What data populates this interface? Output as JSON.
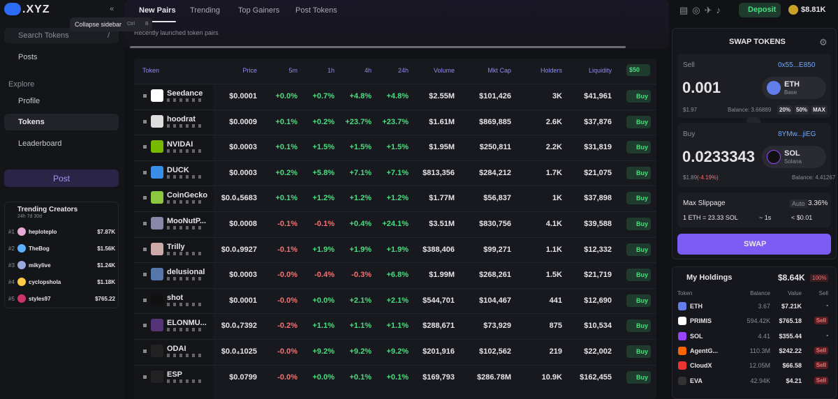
{
  "sidebar": {
    "logo": ".XYZ",
    "search": "Search Tokens",
    "search_key": "/",
    "nav": [
      "Posts",
      "Explore",
      "Profile",
      "Tokens",
      "Leaderboard"
    ],
    "post_button": "Post",
    "trending": {
      "title": "Trending Creators",
      "filters": "24h 7d 30d",
      "items": [
        {
          "rank": "#1",
          "name": "heploteplo",
          "value": "$7.87K"
        },
        {
          "rank": "#2",
          "name": "TheBog",
          "value": "$1.56K"
        },
        {
          "rank": "#3",
          "name": "mikylive",
          "value": "$1.24K"
        },
        {
          "rank": "#4",
          "name": "cyclopshola",
          "value": "$1.18K"
        },
        {
          "rank": "#5",
          "name": "styles97",
          "value": "$765.22"
        }
      ]
    }
  },
  "tooltip": {
    "text": "Collapse sidebar",
    "key1": "Ctrl",
    "key2": "B"
  },
  "tabs": [
    "New Pairs",
    "Trending",
    "Top Gainers",
    "Post Tokens"
  ],
  "subtitle": "Recently launched token pairs",
  "topbar": {
    "deposit": "Deposit",
    "balance": "$8.81K"
  },
  "table": {
    "headers": [
      "Token",
      "Price",
      "5m",
      "1h",
      "4h",
      "24h",
      "Volume",
      "Mkt Cap",
      "Holders",
      "Liquidity"
    ],
    "amount": "$50",
    "buy_label": "Buy",
    "rows": [
      {
        "name": "Seedance",
        "price": "$0.0001",
        "m5": "+0.0%",
        "h1": "+0.7%",
        "h4": "+4.8%",
        "h24": "+4.8%",
        "volume": "$2.55M",
        "mcap": "$101,426",
        "holders": "3K",
        "liquidity": "$41,961"
      },
      {
        "name": "hoodrat",
        "price": "$0.0009",
        "m5": "+0.1%",
        "h1": "+0.2%",
        "h4": "+23.7%",
        "h24": "+23.7%",
        "volume": "$1.61M",
        "mcap": "$869,885",
        "holders": "2.6K",
        "liquidity": "$37,876"
      },
      {
        "name": "NVIDAI",
        "price": "$0.0003",
        "m5": "+0.1%",
        "h1": "+1.5%",
        "h4": "+1.5%",
        "h24": "+1.5%",
        "volume": "$1.95M",
        "mcap": "$250,811",
        "holders": "2.2K",
        "liquidity": "$31,819"
      },
      {
        "name": "DUCK",
        "price": "$0.0003",
        "m5": "+0.2%",
        "h1": "+5.8%",
        "h4": "+7.1%",
        "h24": "+7.1%",
        "volume": "$813,356",
        "mcap": "$284,212",
        "holders": "1.7K",
        "liquidity": "$21,075"
      },
      {
        "name": "CoinGecko",
        "price": "$0.0₄5683",
        "m5": "+0.1%",
        "h1": "+1.2%",
        "h4": "+1.2%",
        "h24": "+1.2%",
        "volume": "$1.77M",
        "mcap": "$56,837",
        "holders": "1K",
        "liquidity": "$37,898"
      },
      {
        "name": "MooNutP...",
        "price": "$0.0008",
        "m5": "-0.1%",
        "h1": "-0.1%",
        "h4": "+0.4%",
        "h24": "+24.1%",
        "volume": "$3.51M",
        "mcap": "$830,756",
        "holders": "4.1K",
        "liquidity": "$39,588"
      },
      {
        "name": "Trilly",
        "price": "$0.0₄9927",
        "m5": "-0.1%",
        "h1": "+1.9%",
        "h4": "+1.9%",
        "h24": "+1.9%",
        "volume": "$388,406",
        "mcap": "$99,271",
        "holders": "1.1K",
        "liquidity": "$12,332"
      },
      {
        "name": "delusional",
        "price": "$0.0003",
        "m5": "-0.0%",
        "h1": "-0.4%",
        "h4": "-0.3%",
        "h24": "+6.8%",
        "volume": "$1.99M",
        "mcap": "$268,261",
        "holders": "1.5K",
        "liquidity": "$21,719"
      },
      {
        "name": "shot",
        "price": "$0.0001",
        "m5": "-0.0%",
        "h1": "+0.0%",
        "h4": "+2.1%",
        "h24": "+2.1%",
        "volume": "$544,701",
        "mcap": "$104,467",
        "holders": "441",
        "liquidity": "$12,690"
      },
      {
        "name": "ELONMU...",
        "price": "$0.0₄7392",
        "m5": "-0.2%",
        "h1": "+1.1%",
        "h4": "+1.1%",
        "h24": "+1.1%",
        "volume": "$288,671",
        "mcap": "$73,929",
        "holders": "875",
        "liquidity": "$10,534"
      },
      {
        "name": "ODAI",
        "price": "$0.0₄1025",
        "m5": "-0.0%",
        "h1": "+9.2%",
        "h4": "+9.2%",
        "h24": "+9.2%",
        "volume": "$201,916",
        "mcap": "$102,562",
        "holders": "219",
        "liquidity": "$22,002"
      },
      {
        "name": "ESP",
        "price": "$0.0799",
        "m5": "-0.0%",
        "h1": "+0.0%",
        "h4": "+0.1%",
        "h24": "+0.1%",
        "volume": "$169,793",
        "mcap": "$286.78M",
        "holders": "10.9K",
        "liquidity": "$162,455"
      }
    ]
  },
  "swap": {
    "title": "SWAP TOKENS",
    "sell": {
      "label": "Sell",
      "address": "0x55...E850",
      "amount": "0.001",
      "token": "ETH",
      "chain": "Base",
      "usd": "$1.97",
      "balance": "Balance: 3.66889",
      "pcts": [
        "20%",
        "50%",
        "MAX"
      ]
    },
    "buy": {
      "label": "Buy",
      "address": "8YMw...jiEG",
      "amount": "0.0233343",
      "token": "SOL",
      "chain": "Solana",
      "usd": "$1.89",
      "change": "(-4.19%)",
      "balance": "Balance: 4.41267"
    },
    "slippage": {
      "label": "Max Slippage",
      "mode": "Auto",
      "value": "3.36%"
    },
    "rate": "1 ETH = 23.33 SOL",
    "time": "~ 1s",
    "fee": "< $0.01",
    "button": "SWAP"
  },
  "holdings": {
    "title": "My Holdings",
    "total": "$8.64K",
    "pct": "100%",
    "headers": [
      "Token",
      "Balance",
      "Value",
      "Sell"
    ],
    "rows": [
      {
        "token": "ETH",
        "balance": "3.67",
        "value": "$7.21K",
        "sell": "-"
      },
      {
        "token": "PRIMIS",
        "balance": "594.42K",
        "value": "$765.18",
        "sell": "Sell"
      },
      {
        "token": "SOL",
        "balance": "4.41",
        "value": "$355.44",
        "sell": "-"
      },
      {
        "token": "AgentG...",
        "balance": "110.3M",
        "value": "$242.22",
        "sell": "Sell"
      },
      {
        "token": "CloudX",
        "balance": "12.05M",
        "value": "$66.58",
        "sell": "Sell"
      },
      {
        "token": "EVA",
        "balance": "42.94K",
        "value": "$4.21",
        "sell": "Sell"
      }
    ]
  }
}
